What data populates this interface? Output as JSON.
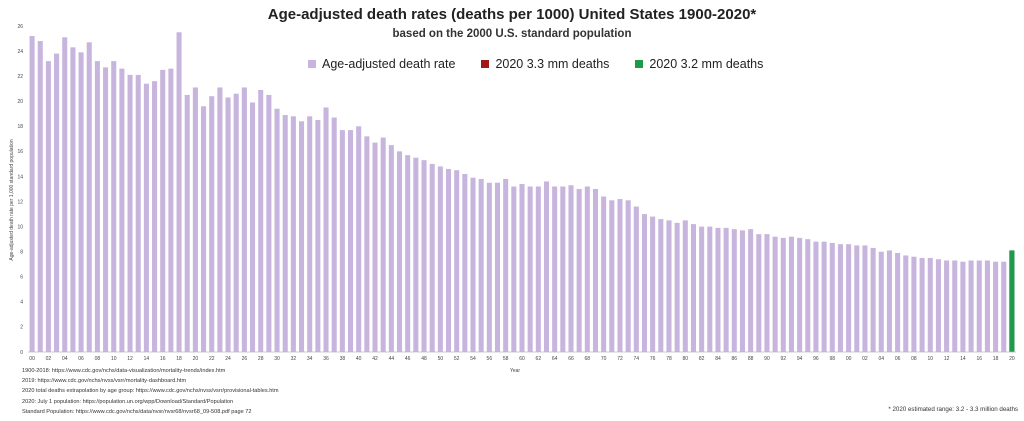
{
  "chart_data": {
    "type": "bar",
    "title": "Age-adjusted death rates (deaths per 1000) United States 1900-2020*",
    "subtitle": "based on the 2000 U.S. standard population",
    "ylabel": "Age-adjusted death rate per 1,000 standard population",
    "xlabel": "Year",
    "ylim": [
      0,
      26
    ],
    "yticks": [
      0,
      2,
      4,
      6,
      8,
      10,
      12,
      14,
      16,
      18,
      20,
      22,
      24,
      26
    ],
    "xtick_labels": [
      "00",
      "02",
      "04",
      "06",
      "08",
      "10",
      "12",
      "14",
      "16",
      "18",
      "20",
      "22",
      "24",
      "26",
      "28",
      "30",
      "32",
      "34",
      "36",
      "38",
      "40",
      "42",
      "44",
      "46",
      "48",
      "50",
      "52",
      "54",
      "56",
      "58",
      "60",
      "62",
      "64",
      "66",
      "68",
      "70",
      "72",
      "74",
      "76",
      "78",
      "80",
      "82",
      "84",
      "86",
      "88",
      "90",
      "92",
      "94",
      "96",
      "98",
      "00",
      "02",
      "04",
      "06",
      "08",
      "10",
      "12",
      "14",
      "16",
      "18",
      "20"
    ],
    "grid": false,
    "legend_position": "top",
    "series": [
      {
        "name": "Age-adjusted death rate",
        "color": "#c8b5dd",
        "x": [
          1900,
          1901,
          1902,
          1903,
          1904,
          1905,
          1906,
          1907,
          1908,
          1909,
          1910,
          1911,
          1912,
          1913,
          1914,
          1915,
          1916,
          1917,
          1918,
          1919,
          1920,
          1921,
          1922,
          1923,
          1924,
          1925,
          1926,
          1927,
          1928,
          1929,
          1930,
          1931,
          1932,
          1933,
          1934,
          1935,
          1936,
          1937,
          1938,
          1939,
          1940,
          1941,
          1942,
          1943,
          1944,
          1945,
          1946,
          1947,
          1948,
          1949,
          1950,
          1951,
          1952,
          1953,
          1954,
          1955,
          1956,
          1957,
          1958,
          1959,
          1960,
          1961,
          1962,
          1963,
          1964,
          1965,
          1966,
          1967,
          1968,
          1969,
          1970,
          1971,
          1972,
          1973,
          1974,
          1975,
          1976,
          1977,
          1978,
          1979,
          1980,
          1981,
          1982,
          1983,
          1984,
          1985,
          1986,
          1987,
          1988,
          1989,
          1990,
          1991,
          1992,
          1993,
          1994,
          1995,
          1996,
          1997,
          1998,
          1999,
          2000,
          2001,
          2002,
          2003,
          2004,
          2005,
          2006,
          2007,
          2008,
          2009,
          2010,
          2011,
          2012,
          2013,
          2014,
          2015,
          2016,
          2017,
          2018,
          2019
        ],
        "values": [
          25.2,
          24.8,
          23.2,
          23.8,
          25.1,
          24.3,
          23.9,
          24.7,
          23.2,
          22.7,
          23.2,
          22.6,
          22.1,
          22.1,
          21.4,
          21.6,
          22.5,
          22.6,
          25.5,
          20.5,
          21.1,
          19.6,
          20.4,
          21.1,
          20.3,
          20.6,
          21.1,
          19.9,
          20.9,
          20.5,
          19.4,
          18.9,
          18.8,
          18.4,
          18.8,
          18.5,
          19.5,
          18.7,
          17.7,
          17.7,
          18.0,
          17.2,
          16.7,
          17.1,
          16.5,
          16.0,
          15.7,
          15.5,
          15.3,
          15.0,
          14.8,
          14.6,
          14.5,
          14.2,
          13.9,
          13.8,
          13.5,
          13.5,
          13.8,
          13.2,
          13.4,
          13.2,
          13.2,
          13.6,
          13.2,
          13.2,
          13.3,
          13.0,
          13.2,
          13.0,
          12.4,
          12.1,
          12.2,
          12.1,
          11.6,
          11.0,
          10.8,
          10.6,
          10.5,
          10.3,
          10.5,
          10.2,
          10.0,
          10.0,
          9.9,
          9.9,
          9.8,
          9.7,
          9.8,
          9.4,
          9.4,
          9.2,
          9.1,
          9.2,
          9.1,
          9.0,
          8.8,
          8.8,
          8.7,
          8.6,
          8.6,
          8.5,
          8.5,
          8.3,
          8.0,
          8.1,
          7.9,
          7.7,
          7.6,
          7.5,
          7.5,
          7.4,
          7.3,
          7.3,
          7.2,
          7.3,
          7.3,
          7.3,
          7.2,
          7.2
        ]
      },
      {
        "name": "2020 3.3 mm deaths",
        "color": "#a01818",
        "x": [
          2020
        ],
        "values": [
          8.1
        ]
      },
      {
        "name": "2020 3.2 mm deaths",
        "color": "#1e9a4c",
        "x": [
          2020
        ],
        "values": [
          8.1
        ]
      }
    ],
    "sources": [
      "1900-2018: https://www.cdc.gov/nchs/data-visualization/mortality-trends/index.htm",
      "2019: https://www.cdc.gov/nchs/nvss/vsrr/mortality-dashboard.htm",
      "2020 total deaths extrapolation by age group: https://www.cdc.gov/nchs/nvss/vsrr/provisional-tables.htm",
      "2020: July 1 population: https://population.un.org/wpp/Download/Standard/Population",
      "Standard Population: https://www.cdc.gov/nchs/data/nvsr/nvsr68/nvsr68_09-508.pdf    page 72"
    ],
    "footnote": "* 2020 estimated range: 3.2 - 3.3 million deaths"
  }
}
